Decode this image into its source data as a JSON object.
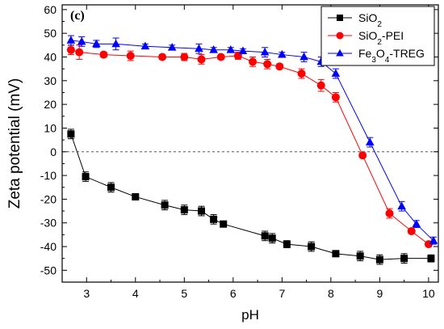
{
  "chart_data": {
    "type": "line",
    "panel_label": "(c)",
    "xlabel": "pH",
    "ylabel": "Zeta potential (mV)",
    "xlim": [
      2.5,
      10.2
    ],
    "ylim": [
      -55,
      62
    ],
    "xticks": [
      3,
      4,
      5,
      6,
      7,
      8,
      9,
      10
    ],
    "yticks": [
      60,
      50,
      40,
      30,
      20,
      10,
      0,
      -10,
      -20,
      -30,
      -40,
      -50
    ],
    "reference_line": {
      "y": 0,
      "style": "dashed"
    },
    "legend": {
      "placement": "top-right"
    },
    "series": [
      {
        "name": "SiO2",
        "name_base": "SiO",
        "name_sub": "2",
        "name_suffix": "",
        "color": "#000000",
        "marker": "square",
        "x": [
          2.68,
          2.98,
          3.5,
          4.0,
          4.6,
          5.0,
          5.35,
          5.6,
          5.8,
          6.65,
          6.8,
          7.1,
          7.6,
          8.1,
          8.6,
          9.0,
          9.5,
          10.05
        ],
        "y": [
          7.5,
          -10.5,
          -15,
          -19,
          -22.5,
          -24.5,
          -25,
          -28.5,
          -30.5,
          -35.5,
          -36.5,
          -39,
          -40,
          -43,
          -44,
          -45.5,
          -45,
          -45
        ],
        "err": [
          2,
          2,
          2,
          1,
          2,
          2,
          2,
          2,
          1,
          2,
          2,
          1.5,
          2,
          1,
          2,
          2,
          2,
          1.5
        ]
      },
      {
        "name": "SiO2-PEI",
        "name_base": "SiO",
        "name_sub": "2",
        "name_suffix": "-PEI",
        "color": "#ff0000",
        "marker": "circle",
        "x": [
          2.68,
          2.85,
          3.35,
          3.9,
          4.55,
          5.0,
          5.35,
          5.75,
          6.1,
          6.4,
          6.7,
          6.95,
          7.4,
          7.8,
          8.1,
          8.65,
          9.2,
          9.65,
          10.0
        ],
        "y": [
          43,
          42,
          41,
          40.5,
          40,
          40,
          39,
          40,
          40.5,
          38,
          37,
          36,
          33,
          28,
          23,
          -1.5,
          -26,
          -33.5,
          -39
        ],
        "err": [
          2,
          3,
          1,
          2,
          1,
          1.5,
          2,
          1,
          1.5,
          2,
          2,
          1,
          2,
          2.5,
          2,
          1,
          2,
          1,
          1
        ]
      },
      {
        "name": "Fe3O4-TREG",
        "name_base": "Fe",
        "name_sub": "3",
        "name_base2": "O",
        "name_sub2": "4",
        "name_suffix": "-TREG",
        "color": "#0000ff",
        "marker": "triangle",
        "x": [
          2.68,
          2.9,
          3.2,
          3.6,
          4.2,
          4.75,
          5.3,
          5.6,
          5.95,
          6.2,
          6.65,
          7.0,
          7.45,
          7.8,
          8.1,
          8.8,
          9.45,
          9.75,
          10.1
        ],
        "y": [
          47,
          46.5,
          45.5,
          45.5,
          44.5,
          44,
          43.5,
          43,
          43,
          42.5,
          42,
          41,
          40,
          38,
          33,
          4,
          -23,
          -30.5,
          -37.5
        ],
        "err": [
          2,
          2,
          1.5,
          2.5,
          1,
          1,
          2,
          1,
          1,
          1,
          2,
          1,
          2,
          2,
          2,
          2,
          2,
          1.5,
          1.5
        ]
      }
    ]
  }
}
